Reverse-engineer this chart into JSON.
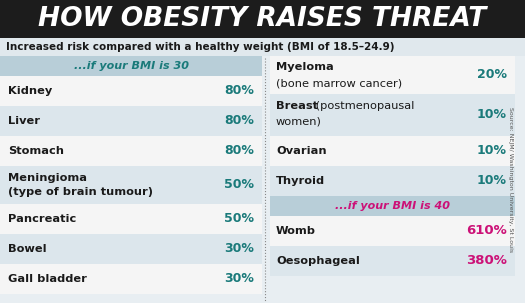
{
  "title": "HOW OBESITY RAISES THREAT",
  "subtitle": "Increased risk compared with a healthy weight (BMI of 18.5–24.9)",
  "source": "Source: NEJM/ Washington University, St Louis",
  "bg_color": "#e8eef2",
  "title_bg": "#1c1c1c",
  "title_color": "#ffffff",
  "header_bg_bmi30": "#b8ced8",
  "header_bg_bmi40": "#b8ced8",
  "white_bg": "#f5f5f5",
  "teal_color": "#1a7a7a",
  "pink_color": "#cc1177",
  "dark_color": "#1a1a1a",
  "bmi30_header": "...if your BMI is 30",
  "bmi40_header": "...if your BMI is 40",
  "left_items": [
    {
      "name": "Kidney",
      "value": "80%",
      "multiline": false
    },
    {
      "name": "Liver",
      "value": "80%",
      "multiline": false
    },
    {
      "name": "Stomach",
      "value": "80%",
      "multiline": false
    },
    {
      "name": "Meningioma\n(type of brain tumour)",
      "value": "50%",
      "multiline": true
    },
    {
      "name": "Pancreatic",
      "value": "50%",
      "multiline": false
    },
    {
      "name": "Bowel",
      "value": "30%",
      "multiline": false
    },
    {
      "name": "Gall bladder",
      "value": "30%",
      "multiline": false
    }
  ],
  "right_bmi30_items": [
    {
      "line1": "Myeloma",
      "line1_bold": true,
      "line2": "(bone marrow cancer)",
      "line2_bold": false,
      "value": "20%",
      "multiline": true
    },
    {
      "line1": "Breast",
      "line1_bold": true,
      "line2_inline": " (postmenopausal",
      "line3": "women)",
      "line2_bold": false,
      "value": "10%",
      "multiline": true
    },
    {
      "line1": "Ovarian",
      "line1_bold": true,
      "line2": "",
      "value": "10%",
      "multiline": false
    },
    {
      "line1": "Thyroid",
      "line1_bold": true,
      "line2": "",
      "value": "10%",
      "multiline": false
    }
  ],
  "right_bmi40_items": [
    {
      "name": "Womb",
      "value": "610%"
    },
    {
      "name": "Oesophageal",
      "value": "380%"
    }
  ]
}
